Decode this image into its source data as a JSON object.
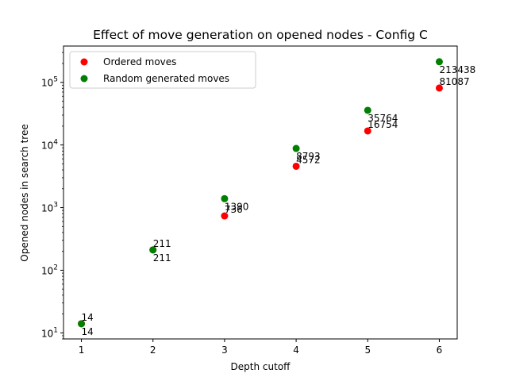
{
  "chart_data": {
    "type": "scatter",
    "title": "Effect of move generation on opened nodes - Config C",
    "xlabel": "Depth cutoff",
    "ylabel": "Opened nodes in search tree",
    "xlim": [
      0.75,
      6.25
    ],
    "ylim": [
      8,
      380000
    ],
    "yscale": "log",
    "xticks": [
      1,
      2,
      3,
      4,
      5,
      6
    ],
    "yticks": [
      {
        "value": 10,
        "base": "10",
        "exp": "1"
      },
      {
        "value": 100,
        "base": "10",
        "exp": "2"
      },
      {
        "value": 1000,
        "base": "10",
        "exp": "3"
      },
      {
        "value": 10000,
        "base": "10",
        "exp": "4"
      },
      {
        "value": 100000,
        "base": "10",
        "exp": "5"
      }
    ],
    "legend_position": "top-left",
    "grid": false,
    "series": [
      {
        "name": "Ordered moves",
        "color": "#ff0000",
        "x": [
          1,
          2,
          3,
          4,
          5,
          6
        ],
        "y": [
          14,
          211,
          736,
          4572,
          16754,
          81087
        ],
        "labels": [
          "14",
          "211",
          "736",
          "4572",
          "16754",
          "81087"
        ],
        "label_placement": "above"
      },
      {
        "name": "Random generated moves",
        "color": "#008000",
        "x": [
          1,
          2,
          3,
          4,
          5,
          6
        ],
        "y": [
          14,
          211,
          1390,
          8793,
          35764,
          213438
        ],
        "labels": [
          "14",
          "211",
          "1390",
          "8793",
          "35764",
          "213438"
        ],
        "label_placement": "below"
      }
    ]
  }
}
